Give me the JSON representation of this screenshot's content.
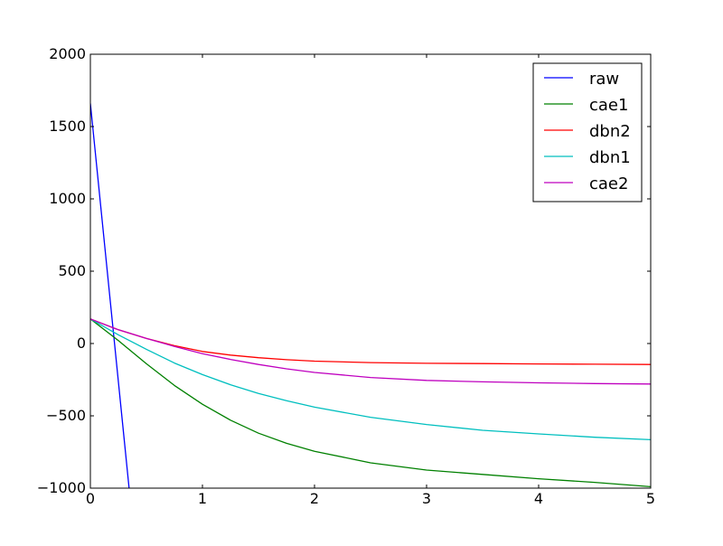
{
  "chart_data": {
    "type": "line",
    "title": "",
    "xlabel": "",
    "ylabel": "",
    "xlim": [
      0,
      5
    ],
    "ylim": [
      -1000,
      2000
    ],
    "grid": false,
    "legend_position": "top-right",
    "x_ticks": [
      0,
      1,
      2,
      3,
      4,
      5
    ],
    "x_tick_labels": [
      "0",
      "1",
      "2",
      "3",
      "4",
      "5"
    ],
    "y_ticks": [
      -1000,
      -500,
      0,
      500,
      1000,
      1500,
      2000
    ],
    "y_tick_labels": [
      "−1000",
      "−500",
      "0",
      "500",
      "1000",
      "1500",
      "2000"
    ],
    "series": [
      {
        "name": "raw",
        "color": "#0000ff",
        "x": [
          0,
          0.1,
          0.2,
          0.3,
          0.35
        ],
        "y": [
          1660,
          890,
          120,
          -650,
          -1035
        ]
      },
      {
        "name": "cae1",
        "color": "#008000",
        "x": [
          0,
          0.25,
          0.5,
          0.75,
          1,
          1.25,
          1.5,
          1.75,
          2,
          2.5,
          3,
          3.5,
          4,
          4.5,
          5
        ],
        "y": [
          170,
          20,
          -140,
          -290,
          -420,
          -530,
          -620,
          -690,
          -745,
          -825,
          -875,
          -905,
          -935,
          -960,
          -990
        ]
      },
      {
        "name": "dbn2",
        "color": "#ff0000",
        "x": [
          0,
          0.25,
          0.5,
          0.75,
          1,
          1.25,
          1.5,
          1.75,
          2,
          2.5,
          3,
          3.5,
          4,
          4.5,
          5
        ],
        "y": [
          170,
          95,
          35,
          -15,
          -55,
          -80,
          -98,
          -112,
          -122,
          -132,
          -137,
          -139,
          -141,
          -143,
          -145
        ]
      },
      {
        "name": "dbn1",
        "color": "#00bfbf",
        "x": [
          0,
          0.25,
          0.5,
          0.75,
          1,
          1.25,
          1.5,
          1.75,
          2,
          2.5,
          3,
          3.5,
          4,
          4.5,
          5
        ],
        "y": [
          170,
          60,
          -40,
          -135,
          -215,
          -285,
          -345,
          -395,
          -440,
          -510,
          -560,
          -600,
          -625,
          -648,
          -665
        ]
      },
      {
        "name": "cae2",
        "color": "#bf00bf",
        "x": [
          0,
          0.25,
          0.5,
          0.75,
          1,
          1.25,
          1.5,
          1.75,
          2,
          2.5,
          3,
          3.5,
          4,
          4.5,
          5
        ],
        "y": [
          170,
          95,
          35,
          -20,
          -70,
          -110,
          -145,
          -175,
          -200,
          -235,
          -255,
          -265,
          -272,
          -277,
          -280
        ]
      }
    ]
  }
}
